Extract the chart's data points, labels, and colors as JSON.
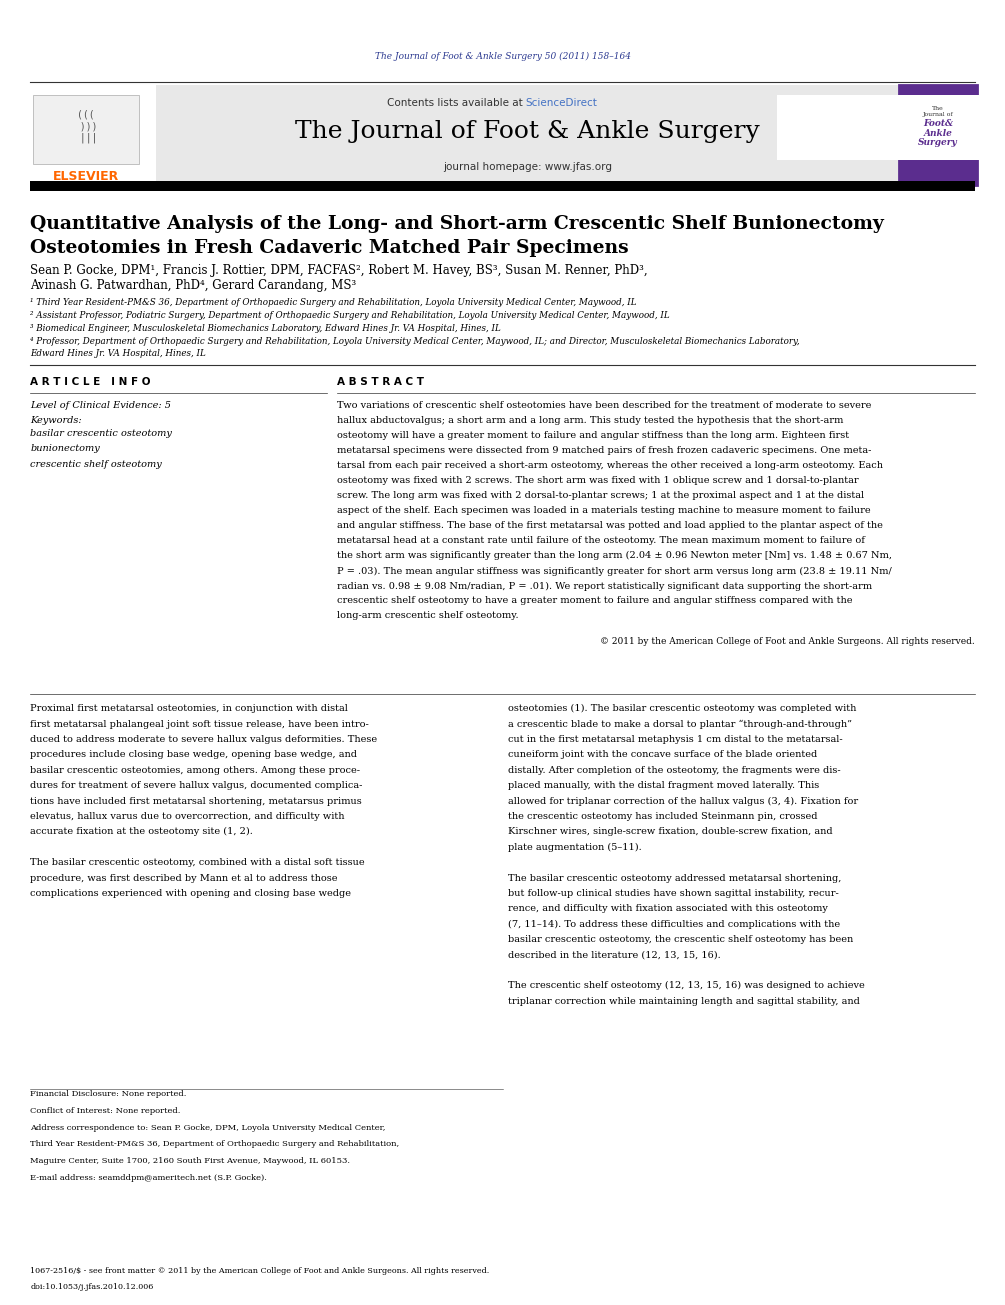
{
  "page_width": 10.05,
  "page_height": 13.05,
  "bg_color": "#ffffff",
  "journal_ref_color": "#2B3990",
  "journal_ref": "The Journal of Foot & Ankle Surgery 50 (2011) 158–164",
  "header_bg": "#e8e8e8",
  "elsevier_color": "#FF6600",
  "sciencedirect_color": "#4472C4",
  "journal_name_header": "The Journal of Foot & Ankle Surgery",
  "journal_homepage": "journal homepage: www.jfas.org",
  "contents_line": "Contents lists available at ScienceDirect",
  "article_info_header": "A R T I C L E   I N F O",
  "abstract_header": "A B S T R A C T",
  "level_evidence": "Level of Clinical Evidence: 5",
  "keywords_header": "Keywords:",
  "keywords": [
    "basilar crescentic osteotomy",
    "bunionectomy",
    "crescentic shelf osteotomy"
  ],
  "copyright_text": "© 2011 by the American College of Foot and Ankle Surgeons. All rights reserved.",
  "affil1": "¹ Third Year Resident-PM&S 36, Department of Orthopaedic Surgery and Rehabilitation, Loyola University Medical Center, Maywood, IL",
  "affil2": "² Assistant Professor, Podiatric Surgery, Department of Orthopaedic Surgery and Rehabilitation, Loyola University Medical Center, Maywood, IL",
  "affil3": "³ Biomedical Engineer, Musculoskeletal Biomechanics Laboratory, Edward Hines Jr. VA Hospital, Hines, IL",
  "affil4a": "⁴ Professor, Department of Orthopaedic Surgery and Rehabilitation, Loyola University Medical Center, Maywood, IL; and Director, Musculoskeletal Biomechanics Laboratory,",
  "affil4b": "Edward Hines Jr. VA Hospital, Hines, IL",
  "footnote_financial": "Financial Disclosure: None reported.",
  "footnote_conflict": "Conflict of Interest: None reported.",
  "footnote_addr1": "Address correspondence to: Sean P. Gocke, DPM, Loyola University Medical Center,",
  "footnote_addr2": "Third Year Resident-PM&S 36, Department of Orthopaedic Surgery and Rehabilitation,",
  "footnote_addr3": "Maguire Center, Suite 1700, 2160 South First Avenue, Maywood, IL 60153.",
  "footnote_email": "E-mail address: seamddpm@ameritech.net (S.P. Gocke).",
  "bottom_ref1": "1067-2516/$ - see front matter © 2011 by the American College of Foot and Ankle Surgeons. All rights reserved.",
  "bottom_ref2": "doi:10.1053/j.jfas.2010.12.006",
  "separator_color": "#000000",
  "thick_bar_color": "#000000",
  "journal_cover_bg": "#5B2D8E",
  "abstract_lines": [
    "Two variations of crescentic shelf osteotomies have been described for the treatment of moderate to severe",
    "hallux abductovalgus; a short arm and a long arm. This study tested the hypothesis that the short-arm",
    "osteotomy will have a greater moment to failure and angular stiffness than the long arm. Eighteen first",
    "metatarsal specimens were dissected from 9 matched pairs of fresh frozen cadaveric specimens. One meta-",
    "tarsal from each pair received a short-arm osteotomy, whereas the other received a long-arm osteotomy. Each",
    "osteotomy was fixed with 2 screws. The short arm was fixed with 1 oblique screw and 1 dorsal-to-plantar",
    "screw. The long arm was fixed with 2 dorsal-to-plantar screws; 1 at the proximal aspect and 1 at the distal",
    "aspect of the shelf. Each specimen was loaded in a materials testing machine to measure moment to failure",
    "and angular stiffness. The base of the first metatarsal was potted and load applied to the plantar aspect of the",
    "metatarsal head at a constant rate until failure of the osteotomy. The mean maximum moment to failure of",
    "the short arm was significantly greater than the long arm (2.04 ± 0.96 Newton meter [Nm] vs. 1.48 ± 0.67 Nm,",
    "P = .03). The mean angular stiffness was significantly greater for short arm versus long arm (23.8 ± 19.11 Nm/",
    "radian vs. 0.98 ± 9.08 Nm/radian, P = .01). We report statistically significant data supporting the short-arm",
    "crescentic shelf osteotomy to have a greater moment to failure and angular stiffness compared with the",
    "long-arm crescentic shelf osteotomy."
  ],
  "body_col1_lines": [
    "Proximal first metatarsal osteotomies, in conjunction with distal",
    "first metatarsal phalangeal joint soft tissue release, have been intro-",
    "duced to address moderate to severe hallux valgus deformities. These",
    "procedures include closing base wedge, opening base wedge, and",
    "basilar crescentic osteotomies, among others. Among these proce-",
    "dures for treatment of severe hallux valgus, documented complica-",
    "tions have included first metatarsal shortening, metatarsus primus",
    "elevatus, hallux varus due to overcorrection, and difficulty with",
    "accurate fixation at the osteotomy site (1, 2).",
    "",
    "The basilar crescentic osteotomy, combined with a distal soft tissue",
    "procedure, was first described by Mann et al to address those",
    "complications experienced with opening and closing base wedge"
  ],
  "body_col2_lines": [
    "osteotomies (1). The basilar crescentic osteotomy was completed with",
    "a crescentic blade to make a dorsal to plantar “through-and-through”",
    "cut in the first metatarsal metaphysis 1 cm distal to the metatarsal-",
    "cuneiform joint with the concave surface of the blade oriented",
    "distally. After completion of the osteotomy, the fragments were dis-",
    "placed manually, with the distal fragment moved laterally. This",
    "allowed for triplanar correction of the hallux valgus (3, 4). Fixation for",
    "the crescentic osteotomy has included Steinmann pin, crossed",
    "Kirschner wires, single-screw fixation, double-screw fixation, and",
    "plate augmentation (5–11).",
    "",
    "The basilar crescentic osteotomy addressed metatarsal shortening,",
    "but follow-up clinical studies have shown sagittal instability, recur-",
    "rence, and difficulty with fixation associated with this osteotomy",
    "(7, 11–14). To address these difficulties and complications with the",
    "basilar crescentic osteotomy, the crescentic shelf osteotomy has been",
    "described in the literature (12, 13, 15, 16).",
    "",
    "The crescentic shelf osteotomy (12, 13, 15, 16) was designed to achieve",
    "triplanar correction while maintaining length and sagittal stability, and"
  ]
}
